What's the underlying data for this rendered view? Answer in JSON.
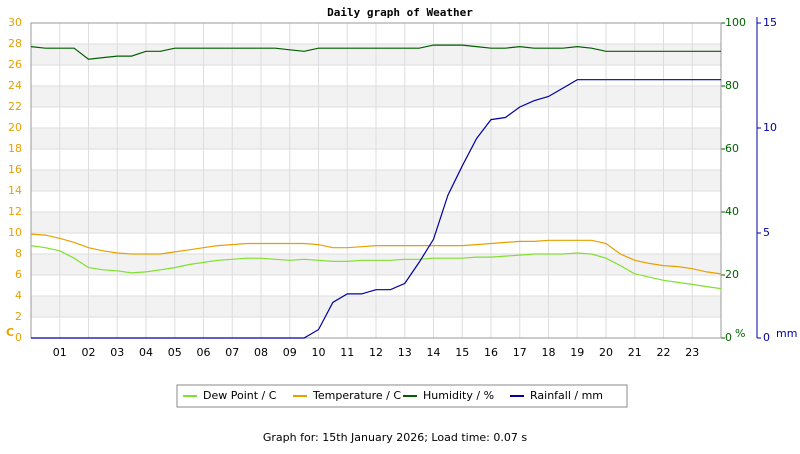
{
  "chart_data": {
    "type": "line",
    "title": "Daily graph of Weather",
    "x": [
      0,
      0.5,
      1,
      1.5,
      2,
      2.5,
      3,
      3.5,
      4,
      4.5,
      5,
      5.5,
      6,
      6.5,
      7,
      7.5,
      8,
      8.5,
      9,
      9.5,
      10,
      10.5,
      11,
      11.5,
      12,
      12.5,
      13,
      13.5,
      14,
      14.5,
      15,
      15.5,
      16,
      16.5,
      17,
      17.5,
      18,
      18.5,
      19,
      19.5,
      20,
      20.5,
      21,
      21.5,
      22,
      22.5,
      23,
      23.5,
      24
    ],
    "xlim": [
      0,
      24
    ],
    "xticks": [
      {
        "value": 1,
        "label": "01"
      },
      {
        "value": 2,
        "label": "02"
      },
      {
        "value": 3,
        "label": "03"
      },
      {
        "value": 4,
        "label": "04"
      },
      {
        "value": 5,
        "label": "05"
      },
      {
        "value": 6,
        "label": "06"
      },
      {
        "value": 7,
        "label": "07"
      },
      {
        "value": 8,
        "label": "08"
      },
      {
        "value": 9,
        "label": "09"
      },
      10,
      11,
      12,
      13,
      14,
      15,
      16,
      17,
      18,
      19,
      20,
      21,
      22,
      23
    ],
    "ylim": [
      0,
      30
    ],
    "yticks": [
      0,
      2,
      4,
      6,
      8,
      10,
      12,
      14,
      16,
      18,
      20,
      22,
      24,
      26,
      28,
      30
    ],
    "y_label": "C",
    "y_color": "#e8a000",
    "y2lim": [
      0,
      100
    ],
    "y2ticks": [
      0,
      20,
      40,
      60,
      80,
      100
    ],
    "y2_label": "%",
    "y2_color": "#006000",
    "y3lim": [
      0,
      15
    ],
    "y3ticks": [
      0,
      5,
      10,
      15
    ],
    "y3_label": "mm",
    "y3_color": "#0000a0",
    "grid": true,
    "series": [
      {
        "name": "Dew Point / C",
        "color": "#80e030",
        "values": [
          8.8,
          8.6,
          8.3,
          7.6,
          6.7,
          6.5,
          6.4,
          6.2,
          6.3,
          6.5,
          6.7,
          7.0,
          7.2,
          7.4,
          7.5,
          7.6,
          7.6,
          7.5,
          7.4,
          7.5,
          7.4,
          7.3,
          7.3,
          7.4,
          7.4,
          7.4,
          7.5,
          7.5,
          7.6,
          7.6,
          7.6,
          7.7,
          7.7,
          7.8,
          7.9,
          8.0,
          8.0,
          8.0,
          8.1,
          8.0,
          7.6,
          6.9,
          6.1,
          5.8,
          5.5,
          5.3,
          5.1,
          4.9,
          4.7
        ]
      },
      {
        "name": "Temperature / C",
        "color": "#e8a000",
        "values": [
          9.9,
          9.8,
          9.5,
          9.1,
          8.6,
          8.3,
          8.1,
          8.0,
          8.0,
          8.0,
          8.2,
          8.4,
          8.6,
          8.8,
          8.9,
          9.0,
          9.0,
          9.0,
          9.0,
          9.0,
          8.9,
          8.6,
          8.6,
          8.7,
          8.8,
          8.8,
          8.8,
          8.8,
          8.8,
          8.8,
          8.8,
          8.9,
          9.0,
          9.1,
          9.2,
          9.2,
          9.3,
          9.3,
          9.3,
          9.3,
          9.0,
          8.0,
          7.4,
          7.1,
          6.9,
          6.8,
          6.6,
          6.3,
          6.1
        ]
      },
      {
        "name": "Humidity / %",
        "color": "#006000",
        "axis": "y2",
        "values": [
          92.5,
          92,
          92,
          92,
          88.5,
          89,
          89.5,
          89.5,
          91,
          91,
          92,
          92,
          92,
          92,
          92,
          92,
          92,
          92,
          91.5,
          91,
          92,
          92,
          92,
          92,
          92,
          92,
          92,
          92,
          93,
          93,
          93,
          92.5,
          92,
          92,
          92.5,
          92,
          92,
          92,
          92.5,
          92,
          91,
          91,
          91,
          91,
          91,
          91,
          91,
          91,
          91
        ]
      },
      {
        "name": "Rainfall / mm",
        "color": "#0000a0",
        "axis": "y3",
        "values": [
          0,
          0,
          0,
          0,
          0,
          0,
          0,
          0,
          0,
          0,
          0,
          0,
          0,
          0,
          0,
          0,
          0,
          0,
          0,
          0,
          0.4,
          1.7,
          2.1,
          2.1,
          2.3,
          2.3,
          2.6,
          3.6,
          4.7,
          6.8,
          8.2,
          9.5,
          10.4,
          10.5,
          11.0,
          11.3,
          11.5,
          11.9,
          12.3,
          12.3,
          12.3,
          12.3,
          12.3,
          12.3,
          12.3,
          12.3,
          12.3,
          12.3,
          12.3
        ]
      }
    ],
    "footer": "Graph for: 15th January 2026; Load time: 0.07 s"
  }
}
